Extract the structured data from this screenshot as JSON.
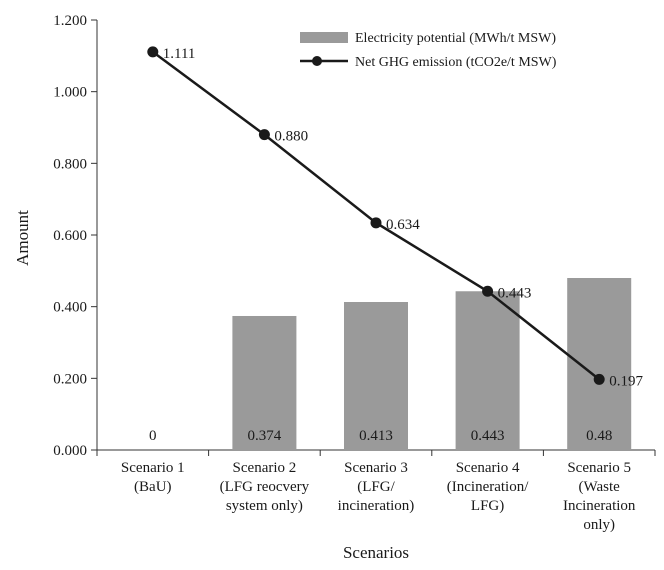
{
  "chart_data": {
    "type": "bar",
    "title": "",
    "xlabel": "Scenarios",
    "ylabel": "Amount",
    "ylim": [
      0,
      1.2
    ],
    "yticks": [
      "0.000",
      "0.200",
      "0.400",
      "0.600",
      "0.800",
      "1.000",
      "1.200"
    ],
    "grid": false,
    "legend_position": "top-right",
    "categories": [
      [
        "Scenario 1",
        "(BaU)"
      ],
      [
        "Scenario 2",
        "(LFG reocvery",
        "system only)"
      ],
      [
        "Scenario 3",
        "(LFG/",
        "incineration)"
      ],
      [
        "Scenario 4",
        "(Incineration/",
        "LFG)"
      ],
      [
        "Scenario 5",
        "(Waste",
        "Incineration",
        "only)"
      ]
    ],
    "series": [
      {
        "name": "Electricity potential (MWh/t MSW)",
        "type": "bar",
        "color": "#9a9a9a",
        "values": [
          0,
          0.374,
          0.413,
          0.443,
          0.48
        ],
        "labels": [
          "0",
          "0.374",
          "0.413",
          "0.443",
          "0.48"
        ]
      },
      {
        "name": "Net GHG emission (tCO2e/t MSW)",
        "type": "line",
        "color": "#1a1a1a",
        "values": [
          1.111,
          0.88,
          0.634,
          0.443,
          0.197
        ],
        "labels": [
          "1.111",
          "0.880",
          "0.634",
          "0.443",
          "0.197"
        ]
      }
    ]
  }
}
